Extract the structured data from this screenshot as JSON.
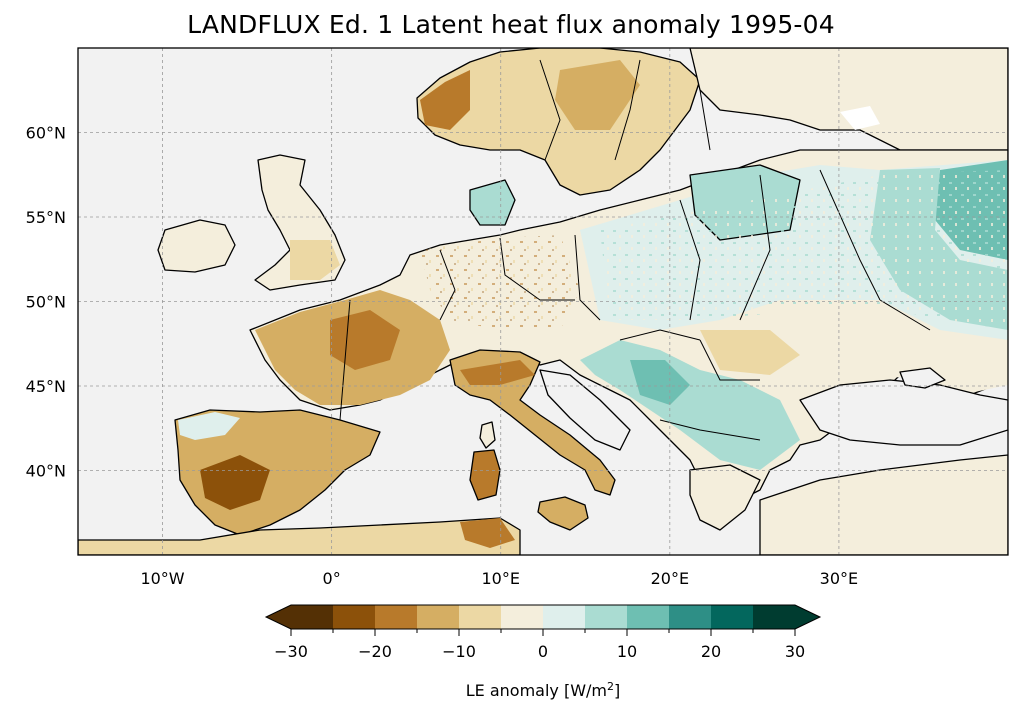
{
  "title": "LANDFLUX Ed. 1 Latent heat flux anomaly 1995-04",
  "map": {
    "projection": "plate-carree",
    "extent_lon": [
      -15,
      40
    ],
    "extent_lat": [
      35,
      65
    ],
    "lon_ticks": [
      {
        "value": -10,
        "label": "10°W"
      },
      {
        "value": 0,
        "label": "0°"
      },
      {
        "value": 10,
        "label": "10°E"
      },
      {
        "value": 20,
        "label": "20°E"
      },
      {
        "value": 30,
        "label": "30°E"
      }
    ],
    "lat_ticks": [
      {
        "value": 60,
        "label": "60°N"
      },
      {
        "value": 55,
        "label": "55°N"
      },
      {
        "value": 50,
        "label": "50°N"
      },
      {
        "value": 45,
        "label": "45°N"
      },
      {
        "value": 40,
        "label": "40°N"
      }
    ],
    "ocean_color": "#f2f2f2",
    "coast_color": "#000000"
  },
  "colorbar": {
    "label": "LE anomaly [W/m²]",
    "label_base": "LE anomaly [W/m",
    "label_sup": "2",
    "label_end": "]",
    "extend": "both",
    "min": -30,
    "max": 30,
    "boundaries": [
      -30,
      -25,
      -20,
      -15,
      -10,
      -5,
      0,
      5,
      10,
      15,
      20,
      25,
      30
    ],
    "colors": [
      "#543005",
      "#8c510a",
      "#b87a2b",
      "#d5ae63",
      "#ecd8a4",
      "#f4eedc",
      "#dfefec",
      "#aadcd2",
      "#6ebfb2",
      "#2e8f86",
      "#03675d",
      "#003c30"
    ],
    "under_color": "#543005",
    "over_color": "#003c30",
    "ticks": [
      {
        "value": -30,
        "label": "−30"
      },
      {
        "value": -20,
        "label": "−20"
      },
      {
        "value": -10,
        "label": "−10"
      },
      {
        "value": 0,
        "label": "0"
      },
      {
        "value": 10,
        "label": "10"
      },
      {
        "value": 20,
        "label": "20"
      },
      {
        "value": 30,
        "label": "30"
      }
    ]
  }
}
